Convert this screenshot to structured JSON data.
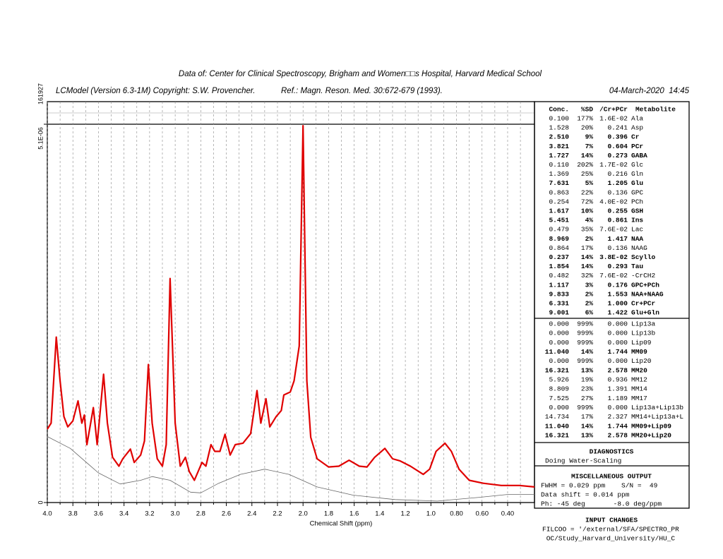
{
  "header": {
    "run_id": "161927",
    "source": "Data of: Center for Clinical Spectroscopy, Brigham and Women□□s Hospital, Harvard Medical School",
    "program": "LCModel (Version 6.3-1M) Copyright: S.W. Provencher.",
    "reference": "Ref.: Magn. Reson. Med. 30:672-679 (1993).",
    "date": "04-March-2020  14:45"
  },
  "chart_data": {
    "type": "line",
    "x_label": "Chemical Shift (ppm)",
    "xlim": [
      4.0,
      0.19
    ],
    "ylim": [
      0,
      5.1e-06
    ],
    "xticks": [
      {
        "value": 4,
        "label": "4.0"
      },
      3.8,
      3.6,
      3.4,
      3.2,
      {
        "value": 3,
        "label": "3.0"
      },
      2.8,
      2.6,
      2.4,
      2.2,
      {
        "value": 2,
        "label": "2.0"
      },
      1.8,
      1.6,
      1.4,
      1.2,
      {
        "value": 1,
        "label": "1.0"
      },
      {
        "value": 0.8,
        "label": "0.80"
      },
      {
        "value": 0.6,
        "label": "0.60"
      },
      {
        "value": 0.4,
        "label": "0.40"
      }
    ],
    "x_minor_ticks": [
      3.9,
      3.7,
      3.5,
      3.3,
      3.1,
      2.9,
      2.7,
      2.5,
      2.3,
      2.1,
      1.9,
      1.7,
      1.5,
      1.3,
      1.1,
      0.9,
      0.7,
      0.5,
      0.3
    ],
    "yticks": [
      0,
      {
        "value": 5.1e-06,
        "label": "5.1E-06"
      }
    ],
    "grid": true,
    "series": [
      {
        "color": "#e00000",
        "x": [
          4.0,
          3.97,
          3.93,
          3.9,
          3.87,
          3.84,
          3.8,
          3.76,
          3.73,
          3.71,
          3.69,
          3.64,
          3.61,
          3.56,
          3.53,
          3.49,
          3.44,
          3.41,
          3.35,
          3.32,
          3.27,
          3.24,
          3.21,
          3.18,
          3.14,
          3.1,
          3.07,
          3.04,
          3.0,
          2.96,
          2.92,
          2.89,
          2.85,
          2.79,
          2.76,
          2.72,
          2.69,
          2.65,
          2.61,
          2.57,
          2.53,
          2.47,
          2.41,
          2.36,
          2.33,
          2.29,
          2.26,
          2.21,
          2.17,
          2.15,
          2.1,
          2.07,
          2.03,
          2.0,
          1.97,
          1.94,
          1.89,
          1.8,
          1.72,
          1.64,
          1.56,
          1.5,
          1.44,
          1.36,
          1.3,
          1.24,
          1.16,
          1.06,
          1.01,
          0.96,
          0.89,
          0.84,
          0.78,
          0.7,
          0.59,
          0.45,
          0.31,
          0.19
        ],
        "values": [
          9.9e-07,
          1.07e-06,
          2.23e-06,
          1.64e-06,
          1.16e-06,
          1.02e-06,
          1.1e-06,
          1.37e-06,
          1.07e-06,
          1.18e-06,
          7.8e-07,
          1.28e-06,
          7.8e-07,
          1.73e-06,
          1.07e-06,
          6.1e-07,
          4.9e-07,
          5.9e-07,
          7.2e-07,
          5.4e-07,
          6.4e-07,
          8.3e-07,
          1.86e-06,
          1.07e-06,
          5.9e-07,
          4.9e-07,
          7.8e-07,
          3.02e-06,
          1.07e-06,
          4.9e-07,
          6.1e-07,
          4.2e-07,
          3e-07,
          5.4e-07,
          4.9e-07,
          7.8e-07,
          6.9e-07,
          6.9e-07,
          9.2e-07,
          6.4e-07,
          7.8e-07,
          8e-07,
          9.3e-07,
          1.51e-06,
          1.07e-06,
          1.4e-06,
          1.02e-06,
          1.16e-06,
          1.24e-06,
          1.45e-06,
          1.49e-06,
          1.64e-06,
          2.11e-06,
          5.08e-06,
          1.64e-06,
          8.8e-07,
          5.9e-07,
          4.8e-07,
          4.9e-07,
          5.7e-07,
          4.9e-07,
          4.8e-07,
          6.1e-07,
          7.3e-07,
          5.9e-07,
          5.6e-07,
          4.9e-07,
          3.8e-07,
          4.5e-07,
          6.9e-07,
          8e-07,
          6.9e-07,
          4.5e-07,
          3e-07,
          2.6e-07,
          2.3e-07,
          2.3e-07,
          2.1e-07
        ]
      },
      {
        "color": "#666666",
        "x": [
          4.0,
          3.82,
          3.6,
          3.43,
          3.27,
          3.18,
          3.04,
          2.88,
          2.8,
          2.66,
          2.49,
          2.3,
          2.11,
          1.89,
          1.61,
          1.28,
          0.95,
          0.62,
          0.39,
          0.19
        ],
        "values": [
          8.9e-07,
          7.3e-07,
          4e-07,
          2.5e-07,
          3e-07,
          3.5e-07,
          3e-07,
          1.4e-07,
          1.3e-07,
          2.6e-07,
          3.8e-07,
          4.5e-07,
          3.8e-07,
          2.1e-07,
          1e-07,
          4e-08,
          2e-08,
          7e-08,
          1.1e-07,
          1.1e-07
        ]
      }
    ]
  },
  "table": {
    "header": [
      "Conc.",
      "%SD",
      "/Cr+PCr",
      "Metabolite"
    ],
    "highlight_color": "#0000ee",
    "rows": [
      {
        "cells": [
          "0.100",
          "177%",
          "1.6E-02",
          "Ala"
        ],
        "highlight": false
      },
      {
        "cells": [
          "1.528",
          "20%",
          "0.241",
          "Asp"
        ],
        "highlight": false
      },
      {
        "cells": [
          "2.510",
          "9%",
          "0.396",
          "Cr"
        ],
        "highlight": true
      },
      {
        "cells": [
          "3.821",
          "7%",
          "0.604",
          "PCr"
        ],
        "highlight": true
      },
      {
        "cells": [
          "1.727",
          "14%",
          "0.273",
          "GABA"
        ],
        "highlight": true
      },
      {
        "cells": [
          "0.110",
          "202%",
          "1.7E-02",
          "Glc"
        ],
        "highlight": false
      },
      {
        "cells": [
          "1.369",
          "25%",
          "0.216",
          "Gln"
        ],
        "highlight": false
      },
      {
        "cells": [
          "7.631",
          "5%",
          "1.205",
          "Glu"
        ],
        "highlight": true
      },
      {
        "cells": [
          "0.863",
          "22%",
          "0.136",
          "GPC"
        ],
        "highlight": false
      },
      {
        "cells": [
          "0.254",
          "72%",
          "4.0E-02",
          "PCh"
        ],
        "highlight": false
      },
      {
        "cells": [
          "1.617",
          "10%",
          "0.255",
          "GSH"
        ],
        "highlight": true
      },
      {
        "cells": [
          "5.451",
          "4%",
          "0.861",
          "Ins"
        ],
        "highlight": true
      },
      {
        "cells": [
          "0.479",
          "35%",
          "7.6E-02",
          "Lac"
        ],
        "highlight": false
      },
      {
        "cells": [
          "8.969",
          "2%",
          "1.417",
          "NAA"
        ],
        "highlight": true
      },
      {
        "cells": [
          "0.864",
          "17%",
          "0.136",
          "NAAG"
        ],
        "highlight": false
      },
      {
        "cells": [
          "0.237",
          "14%",
          "3.8E-02",
          "Scyllo"
        ],
        "highlight": true
      },
      {
        "cells": [
          "1.854",
          "14%",
          "0.293",
          "Tau"
        ],
        "highlight": true
      },
      {
        "cells": [
          "0.482",
          "32%",
          "7.6E-02",
          "-CrCH2"
        ],
        "highlight": false
      },
      {
        "cells": [
          "1.117",
          "3%",
          "0.176",
          "GPC+PCh"
        ],
        "highlight": true
      },
      {
        "cells": [
          "9.833",
          "2%",
          "1.553",
          "NAA+NAAG"
        ],
        "highlight": true
      },
      {
        "cells": [
          "6.331",
          "2%",
          "1.000",
          "Cr+PCr"
        ],
        "highlight": true
      },
      {
        "cells": [
          "9.001",
          "6%",
          "1.422",
          "Glu+Gln"
        ],
        "highlight": true
      }
    ],
    "lipid_rows": [
      {
        "cells": [
          "0.000",
          "999%",
          "0.000",
          "Lip13a"
        ],
        "highlight": false
      },
      {
        "cells": [
          "0.000",
          "999%",
          "0.000",
          "Lip13b"
        ],
        "highlight": false
      },
      {
        "cells": [
          "0.000",
          "999%",
          "0.000",
          "Lip09"
        ],
        "highlight": false
      },
      {
        "cells": [
          "11.040",
          "14%",
          "1.744",
          "MM09"
        ],
        "highlight": true
      },
      {
        "cells": [
          "0.000",
          "999%",
          "0.000",
          "Lip20"
        ],
        "highlight": false
      },
      {
        "cells": [
          "16.321",
          "13%",
          "2.578",
          "MM20"
        ],
        "highlight": true
      },
      {
        "cells": [
          "5.926",
          "19%",
          "0.936",
          "MM12"
        ],
        "highlight": false
      },
      {
        "cells": [
          "8.809",
          "23%",
          "1.391",
          "MM14"
        ],
        "highlight": false
      },
      {
        "cells": [
          "7.525",
          "27%",
          "1.189",
          "MM17"
        ],
        "highlight": false
      },
      {
        "cells": [
          "0.000",
          "999%",
          "0.000",
          "Lip13a+Lip13b"
        ],
        "highlight": false
      },
      {
        "cells": [
          "14.734",
          "17%",
          "2.327",
          "MM14+Lip13a+L"
        ],
        "highlight": false
      },
      {
        "cells": [
          "11.040",
          "14%",
          "1.744",
          "MM09+Lip09"
        ],
        "highlight": true
      },
      {
        "cells": [
          "16.321",
          "13%",
          "2.578",
          "MM20+Lip20"
        ],
        "highlight": true
      }
    ]
  },
  "diagnostics": {
    "title": "DIAGNOSTICS",
    "lines": [
      "Doing Water-Scaling"
    ]
  },
  "misc": {
    "title": "MISCELLANEOUS OUTPUT",
    "lines": [
      "FWHM = 0.029 ppm    S/N =  49",
      "Data shift = 0.014 ppm",
      "Ph: -45 deg       -8.0 deg/ppm"
    ]
  },
  "input_changes": {
    "title": "INPUT CHANGES",
    "lines": [
      "FILCOO = '/external/SFA/SPECTRO_PR",
      " OC/Study_Harvard_University/HU_C"
    ]
  }
}
